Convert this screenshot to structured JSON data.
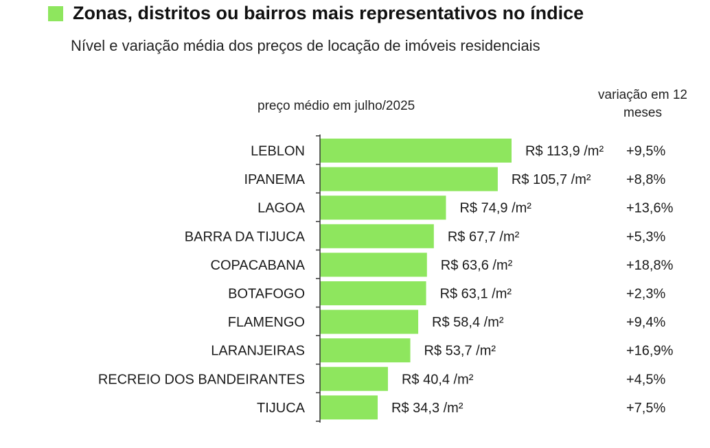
{
  "header": {
    "title": "Zonas, distritos ou bairros mais representativos no índice",
    "subtitle": "Nível e variação média dos preços de locação de imóveis residenciais"
  },
  "columns": {
    "price_heading": "preço médio em julho/2025",
    "change_heading": "variação em 12 meses"
  },
  "colors": {
    "bar": "#8ee65e",
    "axis": "#333333"
  },
  "chart_data": {
    "type": "bar",
    "orientation": "horizontal",
    "title": "Zonas, distritos ou bairros mais representativos no índice",
    "subtitle": "Nível e variação média dos preços de locação de imóveis residenciais",
    "categories": [
      "LEBLON",
      "IPANEMA",
      "LAGOA",
      "BARRA DA TIJUCA",
      "COPACABANA",
      "BOTAFOGO",
      "FLAMENGO",
      "LARANJEIRAS",
      "RECREIO DOS BANDEIRANTES",
      "TIJUCA"
    ],
    "series": [
      {
        "values": [
          113.9,
          105.7,
          74.9,
          67.7,
          63.6,
          63.1,
          58.4,
          53.7,
          40.4,
          34.3
        ]
      }
    ],
    "value_labels": [
      "R$ 113,9 /m²",
      "R$ 105,7 /m²",
      "R$ 74,9 /m²",
      "R$ 67,7 /m²",
      "R$ 63,6 /m²",
      "R$ 63,1 /m²",
      "R$ 58,4 /m²",
      "R$ 53,7 /m²",
      "R$ 40,4 /m²",
      "R$ 34,3 /m²"
    ],
    "change_labels": [
      "+9,5%",
      "+8,8%",
      "+13,6%",
      "+5,3%",
      "+18,8%",
      "+2,3%",
      "+9,4%",
      "+16,9%",
      "+4,5%",
      "+7,5%"
    ],
    "xlim": [
      0,
      113.9
    ],
    "grid": false,
    "legend": "none"
  }
}
